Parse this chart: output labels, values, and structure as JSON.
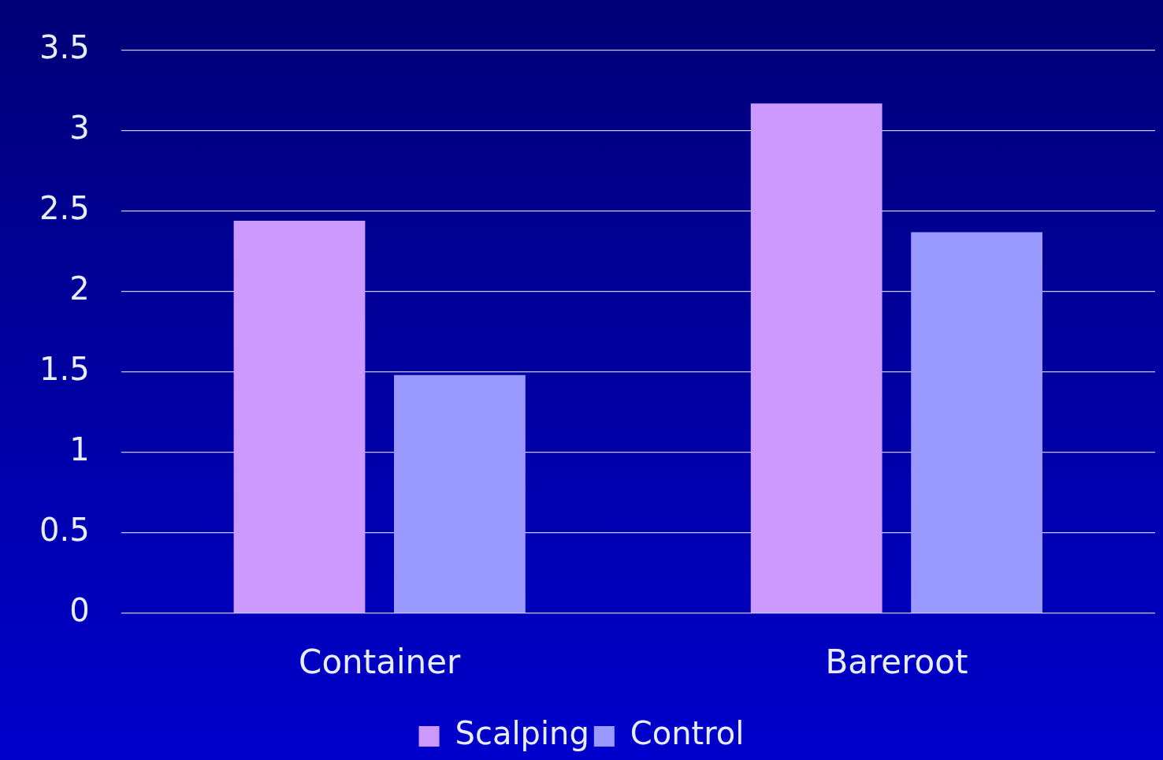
{
  "chart_data": {
    "type": "bar",
    "categories": [
      "Container",
      "Bareroot"
    ],
    "series": [
      {
        "name": "Scalping",
        "color": "#cc99ff",
        "values": [
          2.44,
          3.17
        ]
      },
      {
        "name": "Control",
        "color": "#9999ff",
        "values": [
          1.48,
          2.37
        ]
      }
    ],
    "ylim": [
      0,
      3.5
    ],
    "yticks": [
      0,
      0.5,
      1,
      1.5,
      2,
      2.5,
      3,
      3.5
    ],
    "grid": "y",
    "legend": "bottom"
  }
}
